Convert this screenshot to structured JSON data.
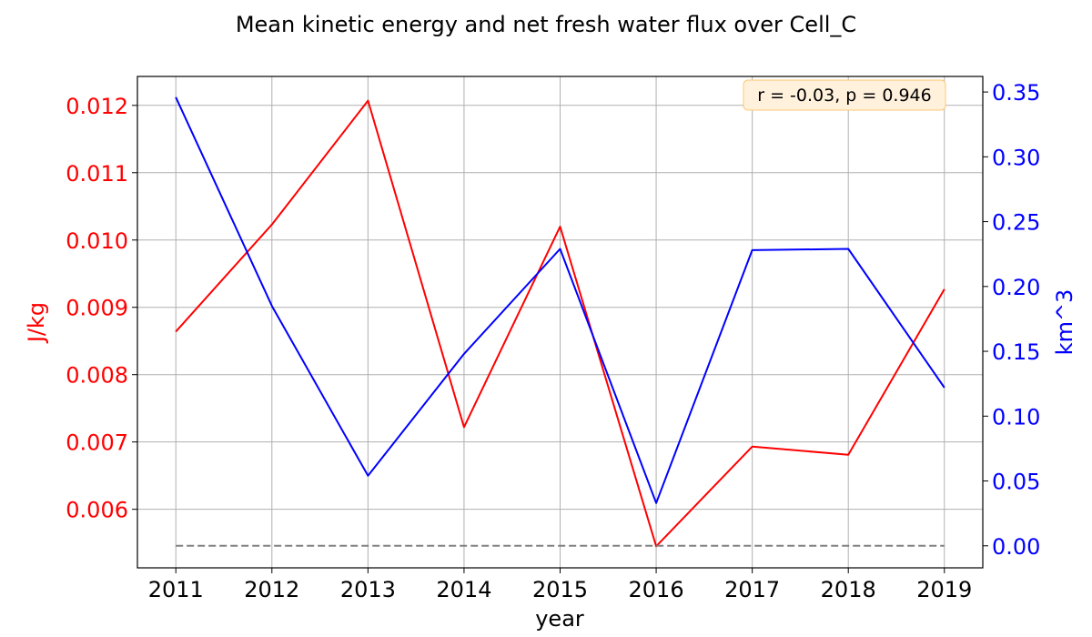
{
  "chart_data": {
    "type": "line",
    "title": "Mean kinetic energy and net fresh water flux over Cell_C",
    "xlabel": "year",
    "ylabel_left": "J/kg",
    "ylabel_right": "km^3",
    "x": [
      2011,
      2012,
      2013,
      2014,
      2015,
      2016,
      2017,
      2018,
      2019
    ],
    "xlim": [
      2010.6,
      2019.4
    ],
    "ylim_left": [
      0.00513,
      0.01243
    ],
    "ylim_right": [
      -0.017,
      0.362
    ],
    "left_ticks": [
      "0.006",
      "0.007",
      "0.008",
      "0.009",
      "0.010",
      "0.011",
      "0.012"
    ],
    "right_ticks": [
      "0.00",
      "0.05",
      "0.10",
      "0.15",
      "0.20",
      "0.25",
      "0.30",
      "0.35"
    ],
    "x_ticks": [
      "2011",
      "2012",
      "2013",
      "2014",
      "2015",
      "2016",
      "2017",
      "2018",
      "2019"
    ],
    "grid": true,
    "series": [
      {
        "axis": "left",
        "color": "#ff0000",
        "values": [
          0.00864,
          0.01023,
          0.01207,
          0.00722,
          0.0102,
          0.00545,
          0.00693,
          0.00681,
          0.00927
        ]
      },
      {
        "axis": "right",
        "color": "#0000ff",
        "values": [
          0.346,
          0.185,
          0.054,
          0.148,
          0.229,
          0.033,
          0.228,
          0.229,
          0.122
        ]
      },
      {
        "axis": "right",
        "color": "#808080",
        "style": "dashed",
        "values": [
          0,
          0,
          0,
          0,
          0,
          0,
          0,
          0,
          0
        ]
      }
    ],
    "annotation": {
      "text": "r = -0.03, p = 0.946",
      "placement": "top-right",
      "face_color": "#fff1dc",
      "edge_color": "#ffc870"
    },
    "colors": {
      "left_axis": "#ff0000",
      "right_axis": "#0000ff",
      "grid": "#b0b0b0"
    }
  }
}
